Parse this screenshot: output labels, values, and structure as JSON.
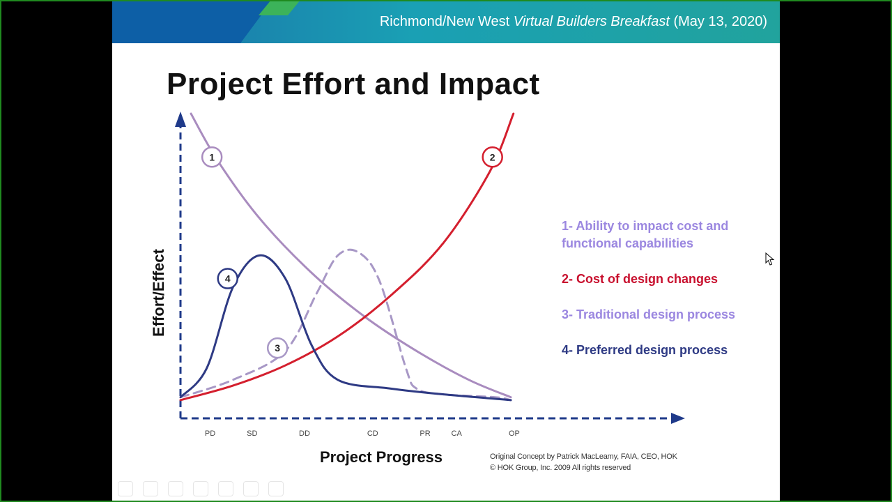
{
  "header": {
    "prefix": "Richmond/New West ",
    "event": "Virtual Builders Breakfast",
    "suffix": " (May 13, 2020)"
  },
  "slide": {
    "title": "Project Effort and Impact",
    "credit_line1": "Original Concept by Patrick MacLeamy, FAIA, CEO, HOK",
    "credit_line2": "© HOK Group, Inc. 2009 All rights reserved"
  },
  "legend": {
    "items": [
      {
        "text": "1- Ability to impact cost and functional capabilities",
        "color": "#9b87e0"
      },
      {
        "text": "2- Cost of design changes",
        "color": "#c8102e"
      },
      {
        "text": "3- Traditional design process",
        "color": "#9b87e0"
      },
      {
        "text": "4- Preferred design process",
        "color": "#2e3a84"
      }
    ]
  },
  "chart_data": {
    "type": "line",
    "title": "Project Effort and Impact",
    "xlabel": "Project Progress",
    "ylabel": "Effort/Effect",
    "categories": [
      "PD",
      "SD",
      "DD",
      "CD",
      "PR",
      "CA",
      "OP"
    ],
    "category_x": [
      0.3,
      1.1,
      2.1,
      3.4,
      4.4,
      5.0,
      6.1
    ],
    "xlim": [
      0,
      7.5
    ],
    "ylim": [
      0,
      100
    ],
    "series": [
      {
        "name": "1",
        "color": "#a98cbf",
        "dashed": false,
        "x": [
          0.2,
          0.7,
          1.5,
          2.5,
          3.5,
          4.5,
          5.5,
          6.3
        ],
        "y": [
          100,
          84,
          64,
          45,
          30,
          18,
          8,
          2
        ]
      },
      {
        "name": "2",
        "color": "#d41f2e",
        "dashed": false,
        "x": [
          0.0,
          1.0,
          2.0,
          3.0,
          4.0,
          5.0,
          5.9,
          6.35
        ],
        "y": [
          1,
          6,
          13,
          23,
          37,
          55,
          80,
          100
        ]
      },
      {
        "name": "3",
        "color": "#a898c6",
        "dashed": true,
        "x": [
          0.0,
          1.0,
          2.0,
          2.6,
          3.0,
          3.4,
          3.8,
          4.3,
          4.5,
          5.0,
          6.0,
          6.3
        ],
        "y": [
          2,
          8,
          18,
          38,
          51,
          52,
          42,
          12,
          5,
          3,
          2,
          1
        ]
      },
      {
        "name": "4",
        "color": "#2e3a84",
        "dashed": false,
        "x": [
          0.0,
          0.5,
          1.0,
          1.5,
          2.0,
          2.5,
          3.0,
          4.0,
          5.0,
          6.3
        ],
        "y": [
          2,
          12,
          40,
          51,
          43,
          20,
          8,
          5,
          3,
          1
        ]
      }
    ],
    "markers": [
      {
        "label": "1",
        "x": 0.6,
        "y": 85,
        "color": "#a98cbf"
      },
      {
        "label": "2",
        "x": 5.95,
        "y": 85,
        "color": "#d41f2e"
      },
      {
        "label": "3",
        "x": 1.85,
        "y": 19,
        "color": "#a898c6"
      },
      {
        "label": "4",
        "x": 0.9,
        "y": 43,
        "color": "#2e3a84"
      }
    ]
  }
}
